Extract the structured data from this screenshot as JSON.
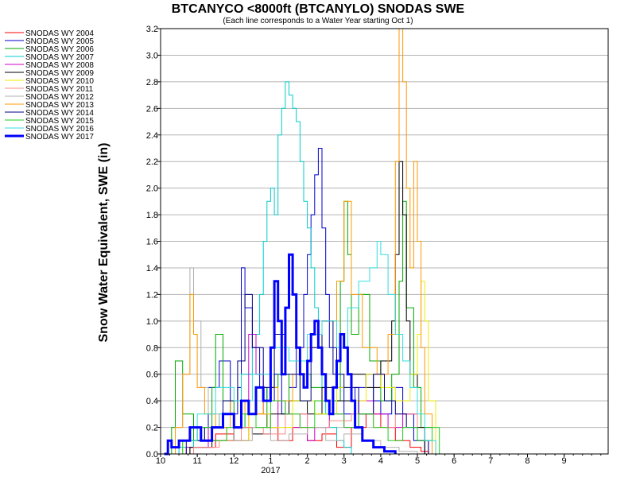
{
  "chart_data": {
    "type": "line",
    "title": "BTCANYCO <8000ft (BTCANYLO) SNODAS SWE",
    "subtitle": "(Each line corresponds to a Water Year starting Oct 1)",
    "ylabel": "Snow Water Equivalent, SWE (in)",
    "xlabel": "",
    "ylim": [
      0,
      3.2
    ],
    "yticks": [
      "0.0",
      "0.2",
      "0.4",
      "0.6",
      "0.8",
      "1.0",
      "1.2",
      "1.4",
      "1.6",
      "1.8",
      "2.0",
      "2.2",
      "2.4",
      "2.6",
      "2.8",
      "3.0",
      "3.2"
    ],
    "xlim": [
      10,
      22.2
    ],
    "xticks": [
      {
        "v": 10,
        "label": "10"
      },
      {
        "v": 11,
        "label": "11"
      },
      {
        "v": 12,
        "label": "12"
      },
      {
        "v": 13,
        "label": "1"
      },
      {
        "v": 14,
        "label": "2"
      },
      {
        "v": 15,
        "label": "3"
      },
      {
        "v": 16,
        "label": "4"
      },
      {
        "v": 17,
        "label": "5"
      },
      {
        "v": 18,
        "label": "6"
      },
      {
        "v": 19,
        "label": "7"
      },
      {
        "v": 20,
        "label": "8"
      },
      {
        "v": 21,
        "label": "9"
      }
    ],
    "year_label": "2017",
    "grid": true,
    "legend_position": "left",
    "series": [
      {
        "name": "SNODAS WY 2004",
        "color": "#ff0000",
        "width": 1,
        "x": [
          10.2,
          10.8,
          11.5,
          12.0,
          12.4,
          12.9,
          13.2,
          13.6,
          14.0,
          14.4,
          14.8,
          15.2,
          15.6,
          16.0,
          16.4,
          16.8,
          17.1,
          17.3
        ],
        "y": [
          0,
          0.05,
          0.15,
          0.1,
          0.3,
          0.2,
          0.1,
          0.2,
          0.1,
          0.15,
          0.05,
          0.2,
          0.3,
          0.2,
          0.1,
          0.05,
          0.02,
          0
        ]
      },
      {
        "name": "SNODAS WY 2005",
        "color": "#0000cc",
        "width": 1,
        "x": [
          10.1,
          10.5,
          11.0,
          11.3,
          11.6,
          11.9,
          12.1,
          12.2,
          12.3,
          12.5,
          12.7,
          12.9,
          13.1,
          13.3,
          13.5,
          13.7,
          13.9,
          14.0,
          14.1,
          14.2,
          14.3,
          14.4,
          14.5,
          14.6,
          14.8,
          15.0,
          15.3,
          15.6,
          15.8,
          16.0,
          16.3,
          16.6,
          16.9,
          17.2
        ],
        "y": [
          0,
          0.1,
          0.2,
          0.5,
          0.7,
          0.3,
          0.5,
          1.4,
          1.1,
          0.8,
          0.5,
          0.4,
          0.6,
          0.3,
          0.5,
          0.8,
          1.2,
          1.5,
          1.8,
          2.1,
          2.3,
          1.7,
          1.2,
          0.8,
          0.5,
          0.3,
          0.5,
          0.6,
          0.4,
          0.3,
          0.5,
          0.3,
          0.1,
          0
        ]
      },
      {
        "name": "SNODAS WY 2006",
        "color": "#00aa00",
        "width": 1,
        "x": [
          10.1,
          10.3,
          10.4,
          10.6,
          10.9,
          11.2,
          11.4,
          11.5,
          11.7,
          12.0,
          12.3,
          12.6,
          12.9,
          13.2,
          13.5,
          13.8,
          14.1,
          14.4,
          14.7,
          14.9,
          15.0,
          15.1,
          15.2,
          15.4,
          15.7,
          16.0,
          16.3,
          16.5,
          16.6,
          16.7,
          16.9,
          17.1,
          17.4
        ],
        "y": [
          0,
          0.2,
          0.7,
          0.3,
          0.1,
          0.2,
          0.5,
          0.9,
          0.4,
          0.2,
          0.3,
          0.2,
          0.5,
          0.6,
          0.4,
          0.6,
          0.5,
          0.3,
          0.4,
          1.3,
          1.9,
          1.5,
          0.9,
          1.2,
          0.7,
          0.4,
          0.6,
          1.3,
          1.9,
          1.1,
          0.5,
          0.2,
          0
        ]
      },
      {
        "name": "SNODAS WY 2007",
        "color": "#00cccc",
        "width": 1,
        "x": [
          10.1,
          10.5,
          10.9,
          11.2,
          11.6,
          11.9,
          12.2,
          12.5,
          12.7,
          12.8,
          12.9,
          13.0,
          13.1,
          13.2,
          13.3,
          13.4,
          13.5,
          13.6,
          13.7,
          13.8,
          13.9,
          14.0,
          14.1,
          14.2,
          14.3,
          14.4,
          14.5,
          14.6,
          14.8,
          15.0,
          15.2
        ],
        "y": [
          0,
          0.05,
          0.1,
          0.2,
          0.3,
          0.4,
          0.6,
          0.9,
          1.2,
          1.6,
          1.9,
          2.0,
          1.8,
          2.4,
          2.6,
          2.8,
          2.7,
          2.6,
          2.5,
          2.2,
          1.9,
          1.7,
          1.4,
          1.1,
          0.8,
          0.5,
          0.3,
          0.2,
          0.1,
          0.05,
          0
        ]
      },
      {
        "name": "SNODAS WY 2008",
        "color": "#cc00cc",
        "width": 1,
        "x": [
          10.1,
          10.7,
          11.3,
          11.8,
          12.2,
          12.4,
          12.6,
          12.8,
          13.0,
          13.2,
          13.4,
          13.6,
          13.8,
          14.0,
          14.2,
          14.6,
          15.0,
          15.4,
          15.8,
          16.2,
          16.6,
          17.0,
          17.3
        ],
        "y": [
          0,
          0.05,
          0.2,
          0.1,
          0.4,
          0.9,
          0.6,
          0.3,
          0.2,
          0.4,
          0.3,
          0.2,
          0.3,
          0.1,
          0.2,
          0.3,
          0.2,
          0.4,
          0.3,
          0.2,
          0.3,
          0.1,
          0
        ]
      },
      {
        "name": "SNODAS WY 2009",
        "color": "#000000",
        "width": 1,
        "x": [
          10.1,
          10.8,
          11.4,
          12.0,
          12.5,
          13.0,
          13.5,
          14.0,
          14.4,
          14.8,
          15.2,
          15.6,
          16.0,
          16.3,
          16.4,
          16.5,
          16.6,
          16.7,
          16.8,
          17.0,
          17.2
        ],
        "y": [
          0,
          0.05,
          0.1,
          0.2,
          0.15,
          0.3,
          0.4,
          0.3,
          0.5,
          0.4,
          0.6,
          0.5,
          0.7,
          1.0,
          1.5,
          2.2,
          1.8,
          1.0,
          0.6,
          0.2,
          0
        ]
      },
      {
        "name": "SNODAS WY 2010",
        "color": "#eeee00",
        "width": 1,
        "x": [
          10.1,
          10.6,
          11.2,
          11.8,
          12.4,
          13.0,
          13.6,
          14.2,
          14.8,
          15.2,
          15.6,
          16.0,
          16.4,
          16.8,
          17.0,
          17.1,
          17.2,
          17.3,
          17.5
        ],
        "y": [
          0,
          0.1,
          0.2,
          0.1,
          0.3,
          0.2,
          0.4,
          0.3,
          0.5,
          0.4,
          0.6,
          0.5,
          0.4,
          0.6,
          0.9,
          1.3,
          1.0,
          0.4,
          0
        ]
      },
      {
        "name": "SNODAS WY 2011",
        "color": "#ff8888",
        "width": 1,
        "x": [
          10.1,
          10.9,
          11.6,
          12.2,
          12.8,
          13.4,
          14.0,
          14.6,
          15.2,
          15.8,
          16.4,
          17.0,
          17.4
        ],
        "y": [
          0,
          0.05,
          0.1,
          0.2,
          0.15,
          0.3,
          0.2,
          0.25,
          0.3,
          0.2,
          0.3,
          0.1,
          0
        ]
      },
      {
        "name": "SNODAS WY 2012",
        "color": "#b0b0b0",
        "width": 1,
        "x": [
          10.1,
          10.4,
          10.6,
          10.8,
          10.9,
          11.1,
          11.3,
          11.6,
          12.0,
          12.5,
          13.0,
          13.5,
          14.0,
          14.5,
          15.0,
          15.5,
          16.0,
          16.5,
          17.0
        ],
        "y": [
          0,
          0.2,
          0.6,
          1.4,
          1.0,
          0.5,
          0.3,
          0.2,
          0.1,
          0.2,
          0.1,
          0.15,
          0.2,
          0.1,
          0.15,
          0.1,
          0.05,
          0.02,
          0
        ]
      },
      {
        "name": "SNODAS WY 2013",
        "color": "#ff9900",
        "width": 1,
        "x": [
          10.1,
          10.4,
          10.6,
          10.8,
          10.9,
          11.0,
          11.2,
          11.5,
          11.9,
          12.3,
          12.8,
          13.2,
          13.6,
          14.0,
          14.4,
          14.8,
          15.0,
          15.2,
          15.5,
          15.9,
          16.2,
          16.4,
          16.5,
          16.6,
          16.7,
          16.8,
          16.9,
          17.0,
          17.1,
          17.2,
          17.4
        ],
        "y": [
          0,
          0.2,
          0.6,
          1.2,
          0.9,
          0.5,
          0.3,
          0.2,
          0.4,
          0.3,
          0.5,
          0.4,
          0.6,
          0.8,
          1.0,
          1.3,
          1.9,
          1.2,
          0.8,
          0.6,
          0.9,
          2.2,
          3.2,
          2.8,
          2.0,
          1.4,
          2.2,
          1.6,
          0.8,
          0.3,
          0
        ]
      },
      {
        "name": "SNODAS WY 2014",
        "color": "#000080",
        "width": 1,
        "x": [
          10.1,
          10.7,
          11.2,
          11.7,
          12.1,
          12.3,
          12.5,
          12.8,
          13.1,
          13.4,
          13.8,
          14.1,
          14.4,
          14.7,
          15.0,
          15.4,
          15.8,
          16.1,
          16.4,
          16.7,
          17.0,
          17.3
        ],
        "y": [
          0,
          0.1,
          0.2,
          0.4,
          0.7,
          1.2,
          0.8,
          0.5,
          0.9,
          0.6,
          0.4,
          0.8,
          1.0,
          0.6,
          0.5,
          0.3,
          0.6,
          0.4,
          0.3,
          0.2,
          0.1,
          0
        ]
      },
      {
        "name": "SNODAS WY 2015",
        "color": "#22cc22",
        "width": 1,
        "x": [
          10.1,
          10.6,
          11.0,
          11.4,
          11.8,
          12.2,
          12.6,
          13.0,
          13.4,
          13.8,
          14.2,
          14.6,
          15.0,
          15.4,
          15.8,
          16.2,
          16.6,
          17.0,
          17.4,
          17.6
        ],
        "y": [
          0,
          0.1,
          0.2,
          0.1,
          0.2,
          0.3,
          0.2,
          0.4,
          0.3,
          0.2,
          0.4,
          0.3,
          0.2,
          0.3,
          0.2,
          0.1,
          0.2,
          0.1,
          0.2,
          0
        ]
      },
      {
        "name": "SNODAS WY 2016",
        "color": "#33dddd",
        "width": 1,
        "x": [
          10.1,
          10.5,
          11.0,
          11.5,
          12.0,
          12.5,
          13.0,
          13.5,
          14.0,
          14.4,
          14.8,
          15.1,
          15.4,
          15.7,
          15.9,
          16.0,
          16.2,
          16.4,
          16.6,
          16.8,
          17.0,
          17.2,
          17.5
        ],
        "y": [
          0,
          0.1,
          0.3,
          0.5,
          0.4,
          0.6,
          0.8,
          0.7,
          0.9,
          1.0,
          0.8,
          1.1,
          1.3,
          1.4,
          1.6,
          1.5,
          1.2,
          0.9,
          0.7,
          0.5,
          0.3,
          0.1,
          0
        ]
      },
      {
        "name": "SNODAS WY 2017",
        "color": "#0000ff",
        "width": 3,
        "x": [
          10.1,
          10.2,
          10.3,
          10.5,
          10.8,
          11.1,
          11.4,
          11.7,
          12.0,
          12.2,
          12.4,
          12.6,
          12.8,
          13.0,
          13.1,
          13.2,
          13.3,
          13.4,
          13.5,
          13.6,
          13.7,
          13.8,
          13.9,
          14.0,
          14.1,
          14.2,
          14.3,
          14.4,
          14.5,
          14.6,
          14.7,
          14.8,
          14.9,
          15.0,
          15.1,
          15.2,
          15.3,
          15.5,
          15.8,
          16.1,
          16.4
        ],
        "y": [
          0,
          0.1,
          0.05,
          0.1,
          0.2,
          0.1,
          0.2,
          0.3,
          0.2,
          0.4,
          0.3,
          0.5,
          0.4,
          0.8,
          1.3,
          1.0,
          0.6,
          1.1,
          1.5,
          1.2,
          0.8,
          0.6,
          0.5,
          0.7,
          0.9,
          1.0,
          0.8,
          0.6,
          0.4,
          0.3,
          0.5,
          0.7,
          0.9,
          0.8,
          0.6,
          0.4,
          0.2,
          0.1,
          0.05,
          0.02,
          0
        ]
      }
    ]
  }
}
